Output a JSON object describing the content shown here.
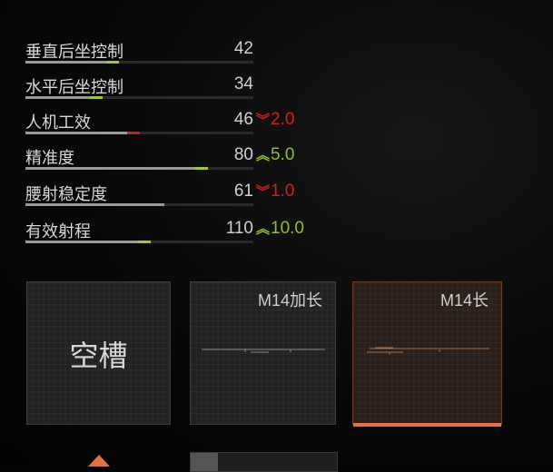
{
  "stats": [
    {
      "label": "垂直后坐控制",
      "value": "42",
      "fill": 0.41,
      "tip_color": "#9ccc2a",
      "delta": null
    },
    {
      "label": "水平后坐控制",
      "value": "34",
      "fill": 0.34,
      "tip_color": "#9ccc2a",
      "delta": null
    },
    {
      "label": "人机工效",
      "value": "46",
      "fill": 0.5,
      "tip_color": "#c62020",
      "delta": {
        "direction": "down",
        "value": "2.0",
        "color": "#d11e1e"
      }
    },
    {
      "label": "精准度",
      "value": "80",
      "fill": 0.8,
      "tip_color": "#9ccc2a",
      "delta": {
        "direction": "up",
        "value": "5.0",
        "color": "#8cbf2c"
      }
    },
    {
      "label": "腰射稳定度",
      "value": "61",
      "fill": 0.61,
      "tip_color": "#9a9a9a",
      "delta": {
        "direction": "down",
        "value": "1.0",
        "color": "#d11e1e"
      }
    },
    {
      "label": "有效射程",
      "value": "110",
      "fill": 0.55,
      "tip_color": "#9ccc2a",
      "delta": {
        "direction": "up",
        "value": "10.0",
        "color": "#8cbf2c"
      }
    }
  ],
  "slots": [
    {
      "label": "空槽",
      "selected": false
    },
    {
      "label": "M14加长",
      "selected": false
    },
    {
      "label": "M14长",
      "selected": true
    }
  ],
  "accent": "#e8703a"
}
